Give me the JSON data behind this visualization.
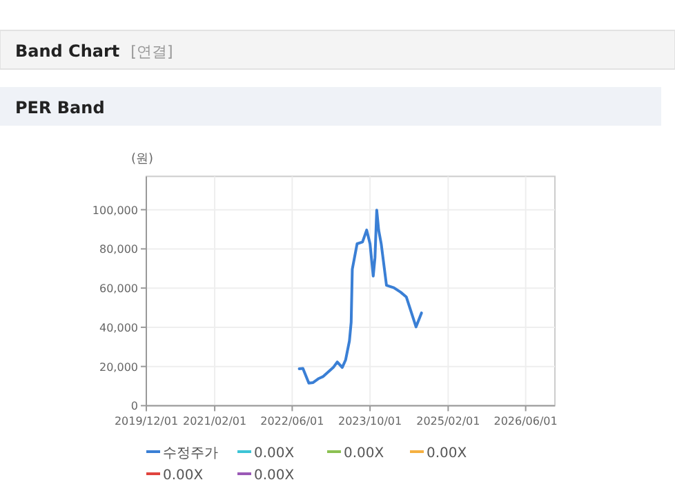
{
  "chart_data": {
    "type": "line",
    "title": "Band Chart",
    "subtitle": "PER Band",
    "annotations": [
      "[연결]"
    ],
    "ylabel": "(원)",
    "xlim": [
      "2019-12-01",
      "2026-12-01"
    ],
    "ylim": [
      0,
      117000
    ],
    "xticks": [
      {
        "value": "2019-12-01",
        "label": "2019/12/01"
      },
      {
        "value": "2021-02-01",
        "label": "2021/02/01"
      },
      {
        "value": "2022-06-01",
        "label": "2022/06/01"
      },
      {
        "value": "2023-10-01",
        "label": "2023/10/01"
      },
      {
        "value": "2025-02-01",
        "label": "2025/02/01"
      },
      {
        "value": "2026-06-01",
        "label": "2026/06/01"
      }
    ],
    "yticks": [
      0,
      {
        "value": 20000,
        "label": "20,000"
      },
      {
        "value": 40000,
        "label": "40,000"
      },
      {
        "value": 60000,
        "label": "60,000"
      },
      {
        "value": 80000,
        "label": "80,000"
      },
      {
        "value": 100000,
        "label": "100,000"
      }
    ],
    "grid": true,
    "legend": "bottom",
    "marker": "none",
    "line_style": "solid",
    "series": [
      {
        "name": "수정주가",
        "color": "#3a7fd5",
        "x": [
          "2022-07-15",
          "2022-08-07",
          "2022-09-13",
          "2022-10-10",
          "2022-11-15",
          "2022-12-10",
          "2023-02-13",
          "2023-03-10",
          "2023-04-10",
          "2023-05-01",
          "2023-05-25",
          "2023-06-05",
          "2023-06-12",
          "2023-07-12",
          "2023-08-15",
          "2023-09-10",
          "2023-10-01",
          "2023-10-21",
          "2023-11-01",
          "2023-11-12",
          "2023-11-24",
          "2023-12-10",
          "2024-01-12",
          "2024-02-27",
          "2024-04-10",
          "2024-05-15",
          "2024-07-15",
          "2024-08-18"
        ],
        "values": [
          18800,
          19000,
          11500,
          11800,
          13900,
          14800,
          19500,
          22300,
          19500,
          23300,
          33000,
          42600,
          69600,
          82600,
          83500,
          89600,
          82600,
          66100,
          75500,
          99800,
          89600,
          82600,
          61400,
          60200,
          57900,
          55500,
          40200,
          47300
        ]
      },
      {
        "name": "0.00X",
        "color": "#3cc4d6"
      },
      {
        "name": "0.00X",
        "color": "#8cc152"
      },
      {
        "name": "0.00X",
        "color": "#f5b041"
      },
      {
        "name": "0.00X",
        "color": "#e0443e"
      },
      {
        "name": "0.00X",
        "color": "#9b59b6"
      }
    ]
  }
}
